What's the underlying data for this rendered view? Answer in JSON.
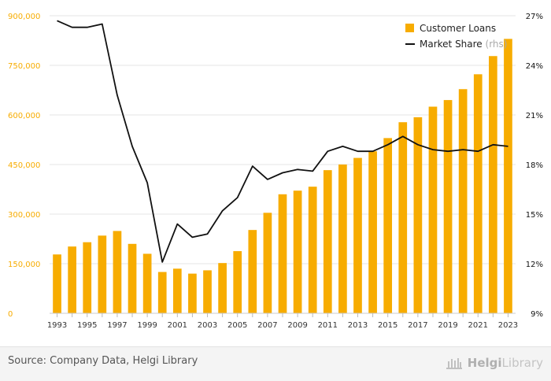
{
  "chart_data": {
    "type": "bar",
    "title": "",
    "xlabel": "",
    "ylabel": "",
    "x": [
      1993,
      1994,
      1995,
      1996,
      1997,
      1998,
      1999,
      2000,
      2001,
      2002,
      2003,
      2004,
      2005,
      2006,
      2007,
      2008,
      2009,
      2010,
      2011,
      2012,
      2013,
      2014,
      2015,
      2016,
      2017,
      2018,
      2019,
      2020,
      2021,
      2022,
      2023
    ],
    "x_tick_labels": [
      "1993",
      "1995",
      "1997",
      "1999",
      "2001",
      "2003",
      "2005",
      "2007",
      "2009",
      "2011",
      "2013",
      "2015",
      "2017",
      "2019",
      "2021",
      "2023"
    ],
    "ylim": [
      0,
      900000
    ],
    "y_ticks": [
      0,
      150000,
      300000,
      450000,
      600000,
      750000,
      900000
    ],
    "y_tick_labels": [
      "0",
      "150,000",
      "300,000",
      "450,000",
      "600,000",
      "750,000",
      "900,000"
    ],
    "y2lim": [
      9,
      27
    ],
    "y2_ticks": [
      9,
      12,
      15,
      18,
      21,
      24,
      27
    ],
    "y2_tick_labels": [
      "9%",
      "12%",
      "15%",
      "18%",
      "21%",
      "24%",
      "27%"
    ],
    "grid": true,
    "legend_position": "top-right",
    "series": [
      {
        "name": "Customer Loans",
        "type": "bar",
        "axis": "left",
        "color": "#f7ac00",
        "values": [
          178000,
          202000,
          215000,
          235000,
          249000,
          210000,
          180000,
          125000,
          135000,
          120000,
          130000,
          152000,
          188000,
          252000,
          304000,
          360000,
          371000,
          383000,
          433000,
          450000,
          470000,
          490000,
          530000,
          578000,
          593000,
          625000,
          645000,
          678000,
          723000,
          778000,
          830000
        ]
      },
      {
        "name": "Market Share",
        "name_suffix": "(rhs)",
        "type": "line",
        "axis": "right",
        "color": "#111111",
        "values": [
          26.7,
          26.3,
          26.3,
          26.5,
          22.2,
          19.1,
          16.9,
          12.1,
          14.4,
          13.6,
          13.8,
          15.2,
          16.0,
          17.9,
          17.1,
          17.5,
          17.7,
          17.6,
          18.8,
          19.1,
          18.8,
          18.8,
          19.2,
          19.7,
          19.2,
          18.9,
          18.8,
          18.9,
          18.8,
          19.2,
          19.1
        ]
      }
    ]
  },
  "footer": {
    "source": "Source: Company Data, Helgi Library",
    "logo_word_1": "Helgi",
    "logo_word_2": "Library"
  }
}
